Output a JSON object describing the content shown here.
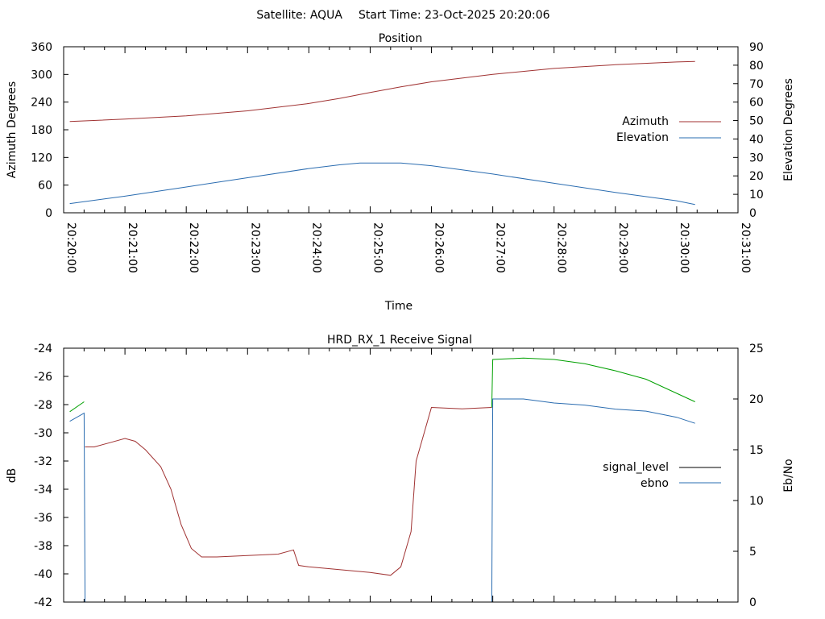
{
  "header": {
    "satellite_label": "Satellite: AQUA",
    "start_time_label": "Start Time: 23-Oct-2025 20:20:06"
  },
  "chart_data": [
    {
      "type": "line",
      "title": "Position",
      "xlabel": "Time",
      "ylabel": "Azimuth Degrees",
      "y2label": "Elevation Degrees",
      "x_ticks": [
        "20:20:00",
        "20:21:00",
        "20:22:00",
        "20:23:00",
        "20:24:00",
        "20:25:00",
        "20:26:00",
        "20:27:00",
        "20:28:00",
        "20:29:00",
        "20:30:00",
        "20:31:00"
      ],
      "xlim": [
        "20:20:00",
        "20:31:00"
      ],
      "ylim": [
        0,
        360
      ],
      "y_ticks": [
        0,
        60,
        120,
        180,
        240,
        300,
        360
      ],
      "y2lim": [
        0,
        90
      ],
      "y2_ticks": [
        0,
        10,
        20,
        30,
        40,
        50,
        60,
        70,
        80,
        90
      ],
      "legend": "center-right",
      "series": [
        {
          "name": "Azimuth",
          "axis": "y",
          "color": "#a03232",
          "x": [
            "20:20:06",
            "20:21:00",
            "20:22:00",
            "20:23:00",
            "20:24:00",
            "20:24:30",
            "20:25:00",
            "20:25:30",
            "20:26:00",
            "20:27:00",
            "20:28:00",
            "20:29:00",
            "20:30:00",
            "20:30:18"
          ],
          "values": [
            198,
            203,
            210,
            221,
            237,
            248,
            261,
            273,
            284,
            300,
            313,
            321,
            327,
            328
          ]
        },
        {
          "name": "Elevation",
          "axis": "y2",
          "color": "#2a6cb0",
          "x": [
            "20:20:06",
            "20:21:00",
            "20:22:00",
            "20:23:00",
            "20:24:00",
            "20:24:30",
            "20:24:50",
            "20:25:30",
            "20:26:00",
            "20:27:00",
            "20:28:00",
            "20:29:00",
            "20:30:00",
            "20:30:18"
          ],
          "values": [
            5,
            9,
            14,
            19,
            24,
            26,
            27,
            27,
            25.5,
            21,
            16,
            11,
            6.5,
            4.5
          ]
        }
      ]
    },
    {
      "type": "line",
      "title": "HRD_RX_1 Receive Signal",
      "xlabel": "",
      "ylabel": "dB",
      "y2label": "Eb/No",
      "xlim": [
        "20:20:00",
        "20:31:00"
      ],
      "ylim": [
        -42,
        -24
      ],
      "y_ticks": [
        -42,
        -40,
        -38,
        -36,
        -34,
        -32,
        -30,
        -28,
        -26,
        -24
      ],
      "y2lim": [
        0,
        25
      ],
      "y2_ticks": [
        0,
        5,
        10,
        15,
        20,
        25
      ],
      "legend": "center-right",
      "series": [
        {
          "name": "signal_level",
          "axis": "y",
          "color": "#000000",
          "segment_color": "#a03232",
          "segment_color_high_ebno": "#00a000",
          "x": [
            "20:20:06",
            "20:20:20",
            "20:20:21",
            "20:20:30",
            "20:20:45",
            "20:21:00",
            "20:21:10",
            "20:21:20",
            "20:21:35",
            "20:21:45",
            "20:21:55",
            "20:22:05",
            "20:22:15",
            "20:22:30",
            "20:23:00",
            "20:23:30",
            "20:23:45",
            "20:23:50",
            "20:24:00",
            "20:24:30",
            "20:25:00",
            "20:25:20",
            "20:25:30",
            "20:25:40",
            "20:25:45",
            "20:26:00",
            "20:26:30",
            "20:26:59",
            "20:27:00",
            "20:27:30",
            "20:28:00",
            "20:28:30",
            "20:29:00",
            "20:29:30",
            "20:30:00",
            "20:30:18"
          ],
          "values": [
            -28.5,
            -27.8,
            -31.0,
            -31.0,
            -30.7,
            -30.4,
            -30.6,
            -31.2,
            -32.4,
            -34.0,
            -36.5,
            -38.2,
            -38.8,
            -38.8,
            -38.7,
            -38.6,
            -38.3,
            -39.4,
            -39.5,
            -39.7,
            -39.9,
            -40.1,
            -39.5,
            -37.0,
            -32.0,
            -28.2,
            -28.3,
            -28.2,
            -24.8,
            -24.7,
            -24.8,
            -25.1,
            -25.6,
            -26.2,
            -27.2,
            -27.8
          ]
        },
        {
          "name": "ebno",
          "axis": "y2",
          "color": "#2a6cb0",
          "x": [
            "20:20:06",
            "20:20:20",
            "20:20:21",
            "20:26:59",
            "20:27:00",
            "20:27:30",
            "20:28:00",
            "20:28:30",
            "20:29:00",
            "20:29:30",
            "20:30:00",
            "20:30:18"
          ],
          "values": [
            17.8,
            18.6,
            0,
            0,
            20.0,
            20.0,
            19.6,
            19.4,
            19.0,
            18.8,
            18.2,
            17.6
          ]
        }
      ]
    }
  ]
}
